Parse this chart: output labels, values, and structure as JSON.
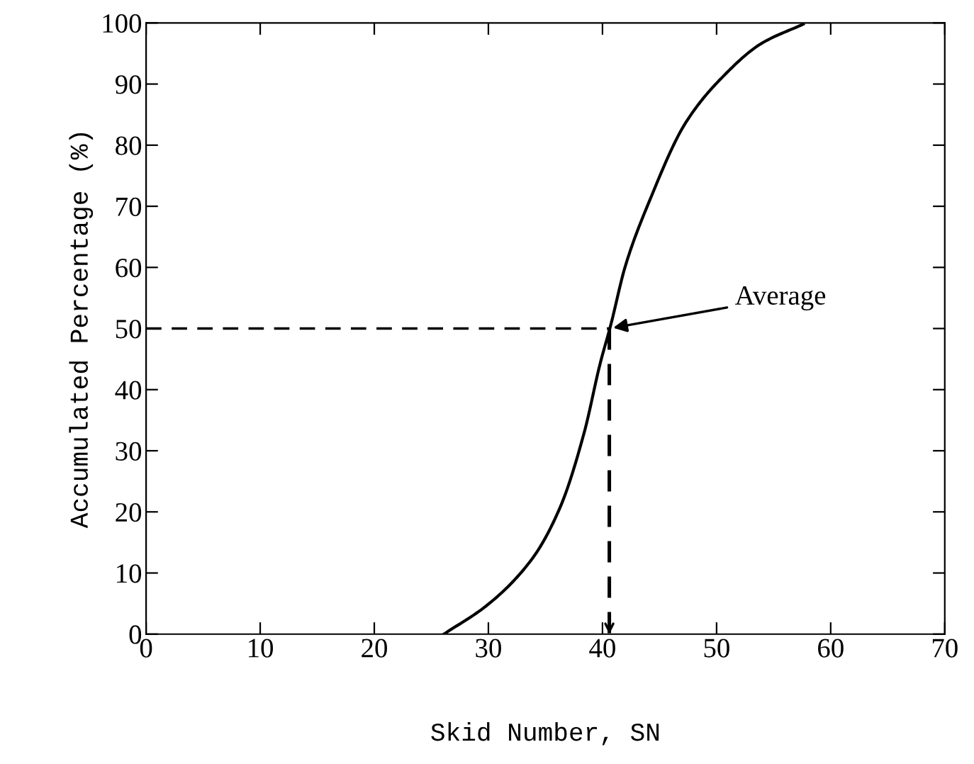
{
  "chart_data": {
    "type": "line",
    "xlabel": "Skid Number, SN",
    "ylabel": "Accumulated Percentage (%)",
    "x": [
      26.1,
      30,
      33.9,
      36.3,
      38.4,
      39.8,
      40.7,
      42.0,
      44.1,
      47.3,
      50.6,
      53.9,
      57.6
    ],
    "series": [
      {
        "color": "#000000",
        "values": [
          0,
          4.9,
          12.5,
          20.8,
          33,
          44.3,
          50.4,
          60.2,
          70.8,
          83.7,
          91.3,
          96.6,
          99.8
        ]
      }
    ],
    "xlim": [
      0,
      70
    ],
    "ylim": [
      0,
      100
    ],
    "xticks": [
      0,
      10,
      20,
      30,
      40,
      50,
      60,
      70
    ],
    "yticks": [
      0,
      10,
      20,
      30,
      40,
      50,
      60,
      70,
      80,
      90,
      100
    ],
    "ref_lines": [
      {
        "axis": "y",
        "value": 50,
        "color": "#000000",
        "line_style": "dashed"
      },
      {
        "axis": "x",
        "value": 40.6,
        "color": "#000000",
        "line_style": "dashed"
      }
    ],
    "annotations": [
      {
        "text": "Average",
        "x": 40.6,
        "y": 50
      }
    ],
    "grid": false,
    "legend": false,
    "marker": "none",
    "line_style": "solid"
  }
}
